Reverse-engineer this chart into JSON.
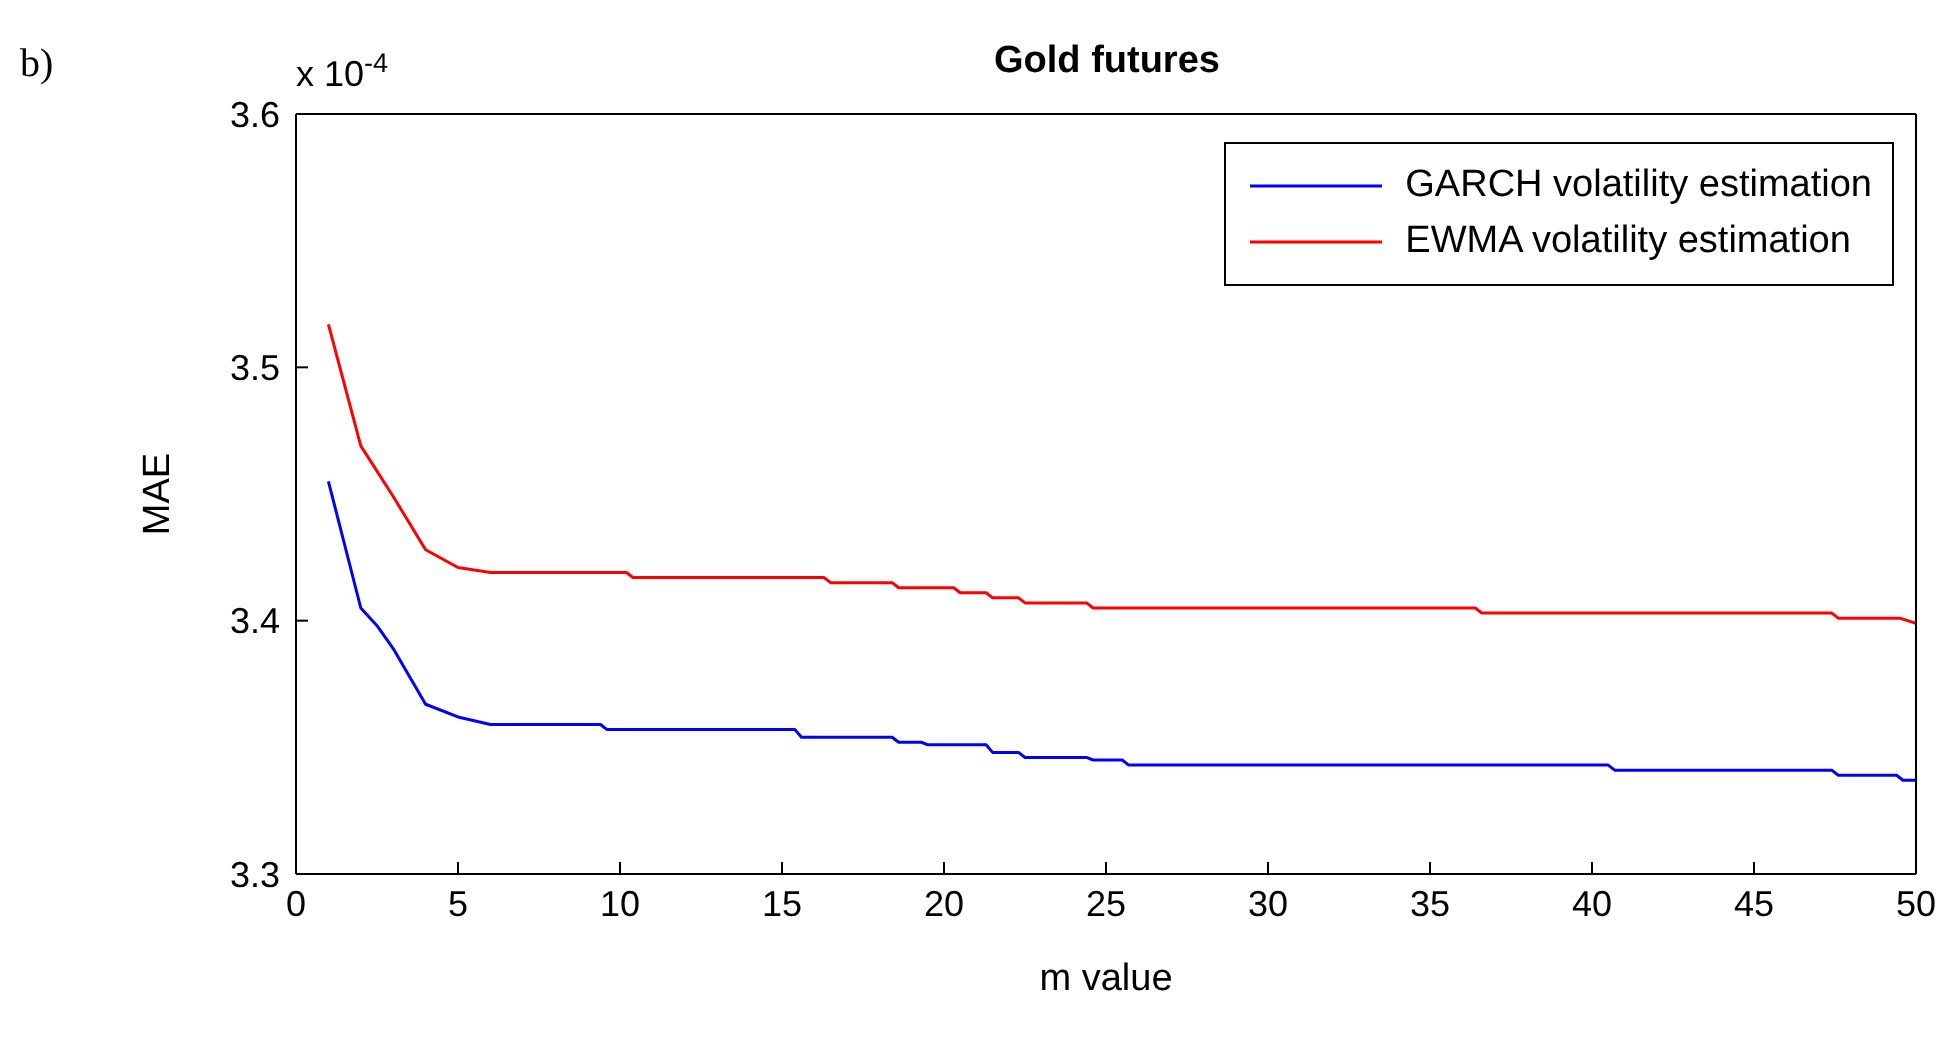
{
  "chart_data": {
    "type": "line",
    "title": "Gold futures",
    "xlabel": "m value",
    "ylabel": "MAE",
    "annotations": [
      "b)",
      "x 10$^{-4}$"
    ],
    "xlim": [
      0,
      50
    ],
    "xticks": [
      0,
      5,
      10,
      15,
      20,
      25,
      30,
      35,
      40,
      45,
      50
    ],
    "ylim": [
      3.3,
      3.6
    ],
    "yticks": [
      3.3,
      3.4,
      3.5,
      3.6
    ],
    "legend": "top right",
    "marker": "none",
    "line_style": "solid",
    "series": [
      {
        "name": "GARCH volatility estimation",
        "color": "#0000ff",
        "x": [
          1,
          2,
          2.5,
          3,
          4,
          5,
          6,
          9.4,
          9.6,
          15.4,
          15.6,
          18.4,
          18.6,
          19.3,
          19.5,
          21.3,
          21.5,
          22.3,
          22.5,
          24.4,
          24.6,
          25.5,
          25.7,
          40.5,
          40.7,
          47.4,
          47.6,
          49.4,
          49.6,
          50
        ],
        "values": [
          3.455,
          3.405,
          3.398,
          3.389,
          3.367,
          3.362,
          3.359,
          3.359,
          3.357,
          3.357,
          3.354,
          3.354,
          3.352,
          3.352,
          3.351,
          3.351,
          3.348,
          3.348,
          3.346,
          3.346,
          3.345,
          3.345,
          3.343,
          3.343,
          3.341,
          3.341,
          3.339,
          3.339,
          3.337,
          3.337
        ]
      },
      {
        "name": "EWMA volatility estimation",
        "color": "#ff0000",
        "x": [
          1,
          2,
          3,
          4,
          5,
          6,
          10.2,
          10.4,
          16.3,
          16.5,
          18.4,
          18.6,
          20.3,
          20.5,
          21.3,
          21.5,
          22.3,
          22.5,
          24.4,
          24.6,
          36.4,
          36.6,
          47.4,
          47.6,
          49.5,
          50
        ],
        "values": [
          3.517,
          3.469,
          3.449,
          3.428,
          3.421,
          3.419,
          3.419,
          3.417,
          3.417,
          3.415,
          3.415,
          3.413,
          3.413,
          3.411,
          3.411,
          3.409,
          3.409,
          3.407,
          3.407,
          3.405,
          3.405,
          3.403,
          3.403,
          3.401,
          3.401,
          3.399
        ]
      }
    ]
  }
}
